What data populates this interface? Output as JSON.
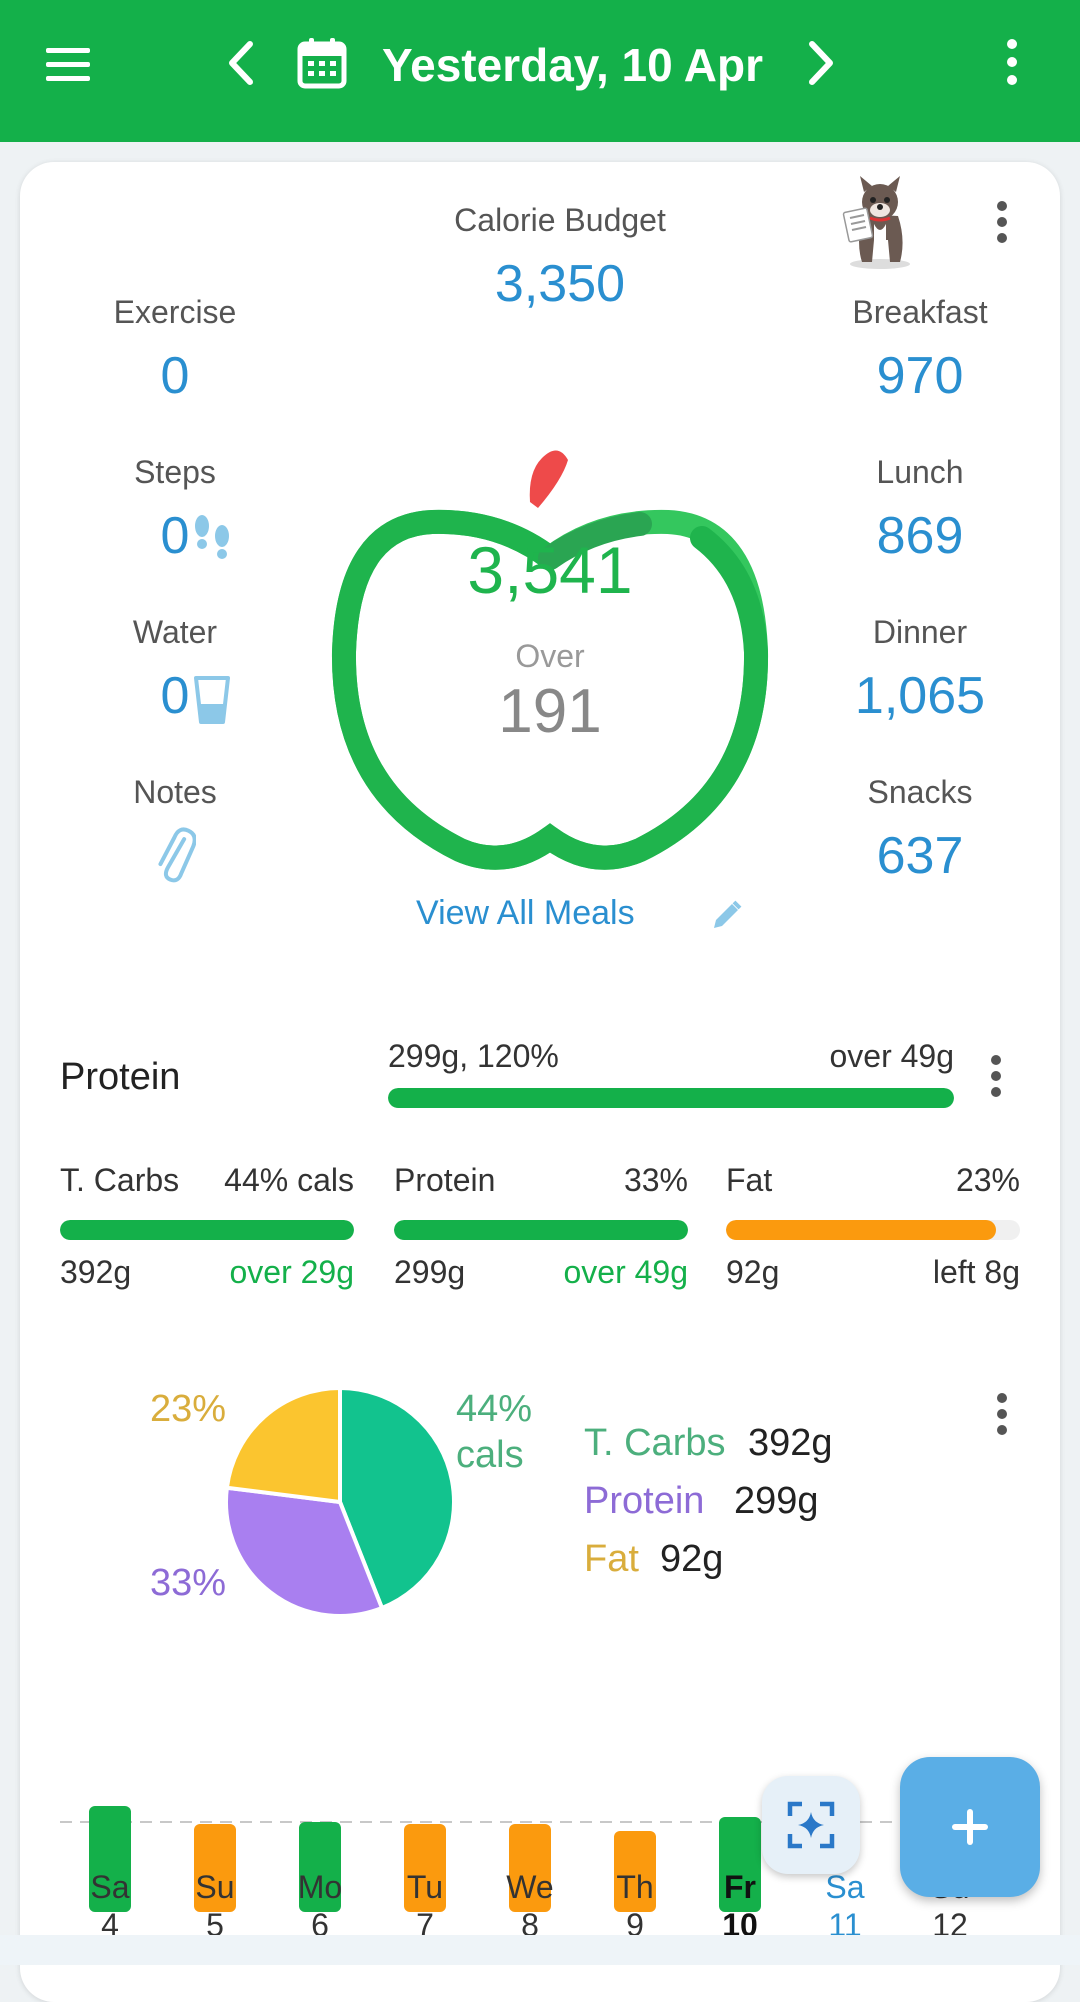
{
  "header": {
    "title": "Yesterday, 10 Apr",
    "icons": [
      "menu-icon",
      "chevron-left-icon",
      "calendar-icon",
      "chevron-right-icon",
      "more-vert-icon"
    ],
    "color": "#14b04a"
  },
  "budget": {
    "label": "Calorie Budget",
    "value": "3,350"
  },
  "left_stats": {
    "exercise": {
      "label": "Exercise",
      "value": "0"
    },
    "steps": {
      "label": "Steps",
      "value": "0"
    },
    "water": {
      "label": "Water",
      "value": "0"
    },
    "notes": {
      "label": "Notes"
    }
  },
  "right_stats": {
    "breakfast": {
      "label": "Breakfast",
      "value": "970"
    },
    "lunch": {
      "label": "Lunch",
      "value": "869"
    },
    "dinner": {
      "label": "Dinner",
      "value": "1,065"
    },
    "snacks": {
      "label": "Snacks",
      "value": "637"
    }
  },
  "apple": {
    "eaten": "3,541",
    "status": "Over",
    "diff": "191"
  },
  "view_all": "View All Meals",
  "protein_goal": {
    "label": "Protein",
    "left_text": "299g, 120%",
    "right_text": "over 49g",
    "fill": 1.0
  },
  "macros": [
    {
      "name": "T. Carbs",
      "pct": "44% cals",
      "grams": "392g",
      "note": "over 29g",
      "note_color": "#14b04a",
      "fill": 1.0,
      "color": "#14b04a"
    },
    {
      "name": "Protein",
      "pct": "33%",
      "grams": "299g",
      "note": "over 49g",
      "note_color": "#14b04a",
      "fill": 1.0,
      "color": "#14b04a"
    },
    {
      "name": "Fat",
      "pct": "23%",
      "grams": "92g",
      "note": "left 8g",
      "note_color": "#333333",
      "fill": 0.92,
      "color": "#fb9a0e"
    }
  ],
  "chart_data": [
    {
      "type": "pie",
      "categories": [
        "T. Carbs",
        "Protein",
        "Fat"
      ],
      "values": [
        44,
        33,
        23
      ],
      "grams": [
        "392g",
        "299g",
        "92g"
      ],
      "colors": [
        "#12c38e",
        "#a97ff0",
        "#fbc52f"
      ],
      "label_colors": [
        "#4caf7d",
        "#8d6bd6",
        "#d9ad3c"
      ],
      "slice_labels": [
        "44%",
        "33%",
        "23%"
      ],
      "carbs_suffix": "cals"
    },
    {
      "type": "bar",
      "categories": [
        "Sa 4",
        "Su 5",
        "Mo 6",
        "Tu 7",
        "We 8",
        "Th 9",
        "Fr 10",
        "Sa 11",
        "Su 12"
      ],
      "day_names": [
        "Sa",
        "Su",
        "Mo",
        "Tu",
        "We",
        "Th",
        "Fr",
        "Sa",
        "Su"
      ],
      "day_numbers": [
        "4",
        "5",
        "6",
        "7",
        "8",
        "9",
        "10",
        "11",
        "12"
      ],
      "values": [
        1.06,
        0.88,
        0.9,
        0.88,
        0.88,
        0.81,
        0.95,
        0,
        0
      ],
      "bar_colors": [
        "#14b04a",
        "#fb9a0e",
        "#14b04a",
        "#fb9a0e",
        "#fb9a0e",
        "#fb9a0e",
        "#14b04a",
        "",
        ""
      ],
      "selected": "Fr 10",
      "today": "Sa 11"
    }
  ]
}
